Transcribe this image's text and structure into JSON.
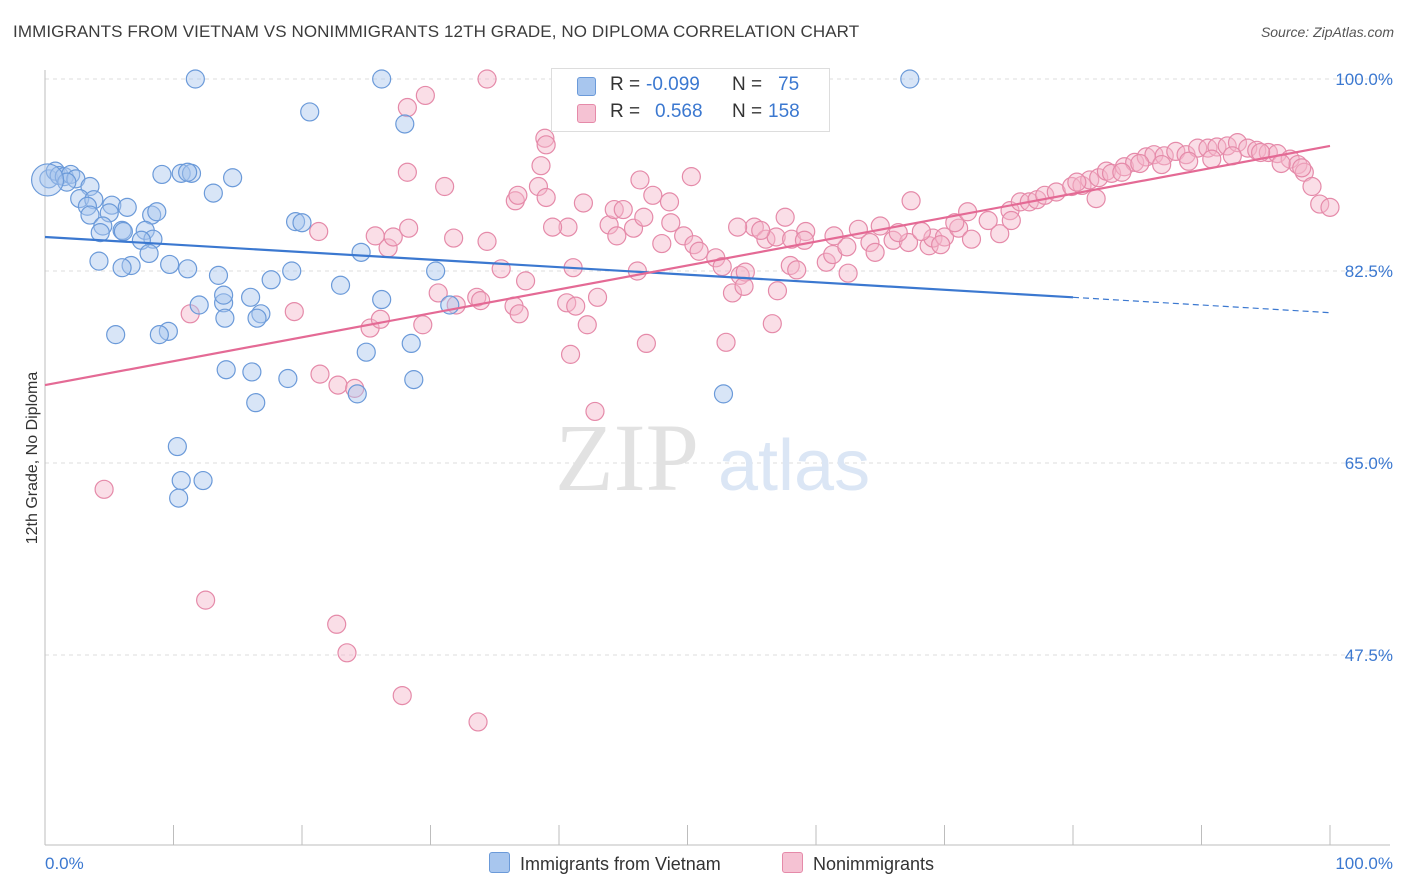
{
  "header": {
    "title": "IMMIGRANTS FROM VIETNAM VS NONIMMIGRANTS 12TH GRADE, NO DIPLOMA CORRELATION CHART",
    "source": "Source: ZipAtlas.com"
  },
  "watermark": {
    "zip": "ZIP",
    "atlas": "atlas"
  },
  "colors": {
    "blue": "#3b78d0",
    "blue_fill": "#a8c6ee",
    "pink": "#e46a95",
    "pink_fill": "#f5b6ca",
    "grid": "#dddddd",
    "tick_label": "#3b78d0"
  },
  "legend": {
    "rows": [
      {
        "r_label": "R =",
        "r_value": "-0.099",
        "n_label": "N =",
        "n_value": "75"
      },
      {
        "r_label": "R =",
        "r_value": "0.568",
        "n_label": "N =",
        "n_value": "158"
      }
    ]
  },
  "bottom_legend": {
    "items": [
      "Immigrants from Vietnam",
      "Nonimmigrants"
    ]
  },
  "chart_data": {
    "type": "scatter",
    "title": "IMMIGRANTS FROM VIETNAM VS NONIMMIGRANTS 12TH GRADE, NO DIPLOMA CORRELATION CHART",
    "xlabel": "",
    "ylabel": "12th Grade, No Diploma",
    "xlim": [
      0,
      100
    ],
    "ylim": [
      31,
      103
    ],
    "x_tick_labels": [
      "0.0%",
      "100.0%"
    ],
    "y_ticks": [
      47.5,
      65.0,
      82.5,
      100.0
    ],
    "y_tick_labels": [
      "47.5%",
      "65.0%",
      "82.5%",
      "100.0%"
    ],
    "grid": "horizontal dashed",
    "legend_position": "top-center",
    "series": [
      {
        "name": "Immigrants from Vietnam",
        "stats": {
          "R": -0.099,
          "N": 75
        },
        "trend": {
          "x0": 0,
          "y0": 85.6,
          "x1": 80,
          "y1": 80.1,
          "dashed_to_x": 100,
          "dashed_to_y": 78.7
        },
        "points": [
          [
            0.3,
            90.9
          ],
          [
            0.8,
            91.6
          ],
          [
            1.1,
            91.2
          ],
          [
            1.5,
            91.1
          ],
          [
            2.0,
            91.3
          ],
          [
            2.4,
            90.9
          ],
          [
            1.7,
            90.6
          ],
          [
            3.5,
            90.2
          ],
          [
            2.7,
            89.1
          ],
          [
            3.8,
            89.0
          ],
          [
            3.3,
            88.4
          ],
          [
            5.2,
            88.5
          ],
          [
            6.4,
            88.3
          ],
          [
            5.0,
            87.8
          ],
          [
            3.5,
            87.6
          ],
          [
            8.3,
            87.6
          ],
          [
            8.7,
            87.9
          ],
          [
            4.5,
            86.6
          ],
          [
            4.3,
            86.0
          ],
          [
            6.0,
            86.2
          ],
          [
            6.1,
            86.1
          ],
          [
            7.8,
            86.2
          ],
          [
            8.4,
            85.4
          ],
          [
            7.5,
            85.3
          ],
          [
            8.1,
            84.1
          ],
          [
            4.2,
            83.4
          ],
          [
            6.7,
            83.0
          ],
          [
            6.0,
            82.8
          ],
          [
            9.7,
            83.1
          ],
          [
            11.1,
            82.7
          ],
          [
            13.5,
            82.1
          ],
          [
            12.0,
            79.4
          ],
          [
            13.9,
            79.6
          ],
          [
            14.0,
            78.2
          ],
          [
            16.0,
            80.1
          ],
          [
            17.6,
            81.7
          ],
          [
            16.8,
            78.6
          ],
          [
            19.2,
            82.5
          ],
          [
            9.6,
            77.0
          ],
          [
            8.9,
            76.7
          ],
          [
            5.5,
            76.7
          ],
          [
            10.6,
            91.4
          ],
          [
            11.4,
            91.4
          ],
          [
            11.1,
            91.5
          ],
          [
            9.1,
            91.3
          ],
          [
            14.6,
            91.0
          ],
          [
            13.1,
            89.6
          ],
          [
            19.5,
            87.0
          ],
          [
            20.0,
            86.9
          ],
          [
            23.0,
            81.2
          ],
          [
            26.2,
            79.9
          ],
          [
            24.6,
            84.2
          ],
          [
            30.4,
            82.5
          ],
          [
            31.5,
            79.4
          ],
          [
            25.0,
            75.1
          ],
          [
            28.5,
            75.9
          ],
          [
            14.1,
            73.5
          ],
          [
            16.1,
            73.3
          ],
          [
            18.9,
            72.7
          ],
          [
            16.4,
            70.5
          ],
          [
            28.7,
            72.6
          ],
          [
            24.3,
            71.3
          ],
          [
            12.3,
            63.4
          ],
          [
            10.3,
            66.5
          ],
          [
            10.6,
            63.4
          ],
          [
            10.4,
            61.8
          ],
          [
            11.7,
            100.0
          ],
          [
            20.6,
            97.0
          ],
          [
            26.2,
            100.0
          ],
          [
            28.0,
            95.9
          ],
          [
            42.6,
            100.0
          ],
          [
            67.3,
            100.0
          ],
          [
            52.8,
            71.3
          ],
          [
            16.5,
            78.2
          ],
          [
            13.9,
            80.3
          ]
        ]
      },
      {
        "name": "Nonimmigrants",
        "stats": {
          "R": 0.568,
          "N": 158
        },
        "trend": {
          "x0": 0,
          "y0": 72.1,
          "x1": 100,
          "y1": 93.9
        },
        "points": [
          [
            4.6,
            62.6
          ],
          [
            12.5,
            52.5
          ],
          [
            22.7,
            50.3
          ],
          [
            23.5,
            47.7
          ],
          [
            33.7,
            41.4
          ],
          [
            27.8,
            43.8
          ],
          [
            11.3,
            78.6
          ],
          [
            19.4,
            78.8
          ],
          [
            21.3,
            86.1
          ],
          [
            21.4,
            73.1
          ],
          [
            22.8,
            72.1
          ],
          [
            24.1,
            71.8
          ],
          [
            25.3,
            77.3
          ],
          [
            26.1,
            78.1
          ],
          [
            25.7,
            85.7
          ],
          [
            26.7,
            84.6
          ],
          [
            27.1,
            85.6
          ],
          [
            28.2,
            91.5
          ],
          [
            28.3,
            86.4
          ],
          [
            29.4,
            77.6
          ],
          [
            30.6,
            80.5
          ],
          [
            31.8,
            85.5
          ],
          [
            33.6,
            80.1
          ],
          [
            33.9,
            79.8
          ],
          [
            34.4,
            85.2
          ],
          [
            35.5,
            82.7
          ],
          [
            36.5,
            79.3
          ],
          [
            37.4,
            81.6
          ],
          [
            36.9,
            78.6
          ],
          [
            38.4,
            90.2
          ],
          [
            38.9,
            94.6
          ],
          [
            31.1,
            90.2
          ],
          [
            28.2,
            97.4
          ],
          [
            29.6,
            98.5
          ],
          [
            34.4,
            100.0
          ],
          [
            36.6,
            88.9
          ],
          [
            36.8,
            89.4
          ],
          [
            39.0,
            89.2
          ],
          [
            38.6,
            92.1
          ],
          [
            39.0,
            94.0
          ],
          [
            40.7,
            86.5
          ],
          [
            41.1,
            82.8
          ],
          [
            40.6,
            79.6
          ],
          [
            41.3,
            79.3
          ],
          [
            40.9,
            74.9
          ],
          [
            42.2,
            77.6
          ],
          [
            43.0,
            80.1
          ],
          [
            42.8,
            69.7
          ],
          [
            43.9,
            86.7
          ],
          [
            44.3,
            88.1
          ],
          [
            45.0,
            88.1
          ],
          [
            46.1,
            82.5
          ],
          [
            45.8,
            86.4
          ],
          [
            46.6,
            87.4
          ],
          [
            46.8,
            75.9
          ],
          [
            46.3,
            90.8
          ],
          [
            47.3,
            89.4
          ],
          [
            48.6,
            88.8
          ],
          [
            48.7,
            86.9
          ],
          [
            49.7,
            85.7
          ],
          [
            50.5,
            84.9
          ],
          [
            50.9,
            84.3
          ],
          [
            50.3,
            91.1
          ],
          [
            52.2,
            83.7
          ],
          [
            52.7,
            82.9
          ],
          [
            53.0,
            76.0
          ],
          [
            53.5,
            80.5
          ],
          [
            54.1,
            82.1
          ],
          [
            54.5,
            82.4
          ],
          [
            54.4,
            81.1
          ],
          [
            55.2,
            86.5
          ],
          [
            56.1,
            85.4
          ],
          [
            56.9,
            85.6
          ],
          [
            58.1,
            85.4
          ],
          [
            59.2,
            86.1
          ],
          [
            58.0,
            83.0
          ],
          [
            58.5,
            82.6
          ],
          [
            57.0,
            80.7
          ],
          [
            56.6,
            77.7
          ],
          [
            55.7,
            86.2
          ],
          [
            59.1,
            85.3
          ],
          [
            60.8,
            83.3
          ],
          [
            62.5,
            82.3
          ],
          [
            61.3,
            84.0
          ],
          [
            62.4,
            84.7
          ],
          [
            64.2,
            85.1
          ],
          [
            64.6,
            84.2
          ],
          [
            65.0,
            86.6
          ],
          [
            66.0,
            85.3
          ],
          [
            67.2,
            85.1
          ],
          [
            68.8,
            84.8
          ],
          [
            69.1,
            85.5
          ],
          [
            70.0,
            85.6
          ],
          [
            71.1,
            86.4
          ],
          [
            72.1,
            85.4
          ],
          [
            73.4,
            87.1
          ],
          [
            74.3,
            85.9
          ],
          [
            75.1,
            88.0
          ],
          [
            75.2,
            87.1
          ],
          [
            75.9,
            88.8
          ],
          [
            76.6,
            88.8
          ],
          [
            77.2,
            89.0
          ],
          [
            77.8,
            89.4
          ],
          [
            78.7,
            89.7
          ],
          [
            79.9,
            90.2
          ],
          [
            80.7,
            90.3
          ],
          [
            81.3,
            90.8
          ],
          [
            82.0,
            91.0
          ],
          [
            82.6,
            91.6
          ],
          [
            83.0,
            91.4
          ],
          [
            84.0,
            92.0
          ],
          [
            84.8,
            92.4
          ],
          [
            85.7,
            92.9
          ],
          [
            86.3,
            93.1
          ],
          [
            87.1,
            93.0
          ],
          [
            88.0,
            93.4
          ],
          [
            88.8,
            93.1
          ],
          [
            89.7,
            93.7
          ],
          [
            90.5,
            93.7
          ],
          [
            91.2,
            93.8
          ],
          [
            92.0,
            93.9
          ],
          [
            92.8,
            94.2
          ],
          [
            93.6,
            93.7
          ],
          [
            94.3,
            93.5
          ],
          [
            95.2,
            93.3
          ],
          [
            95.9,
            93.2
          ],
          [
            96.9,
            92.7
          ],
          [
            97.5,
            92.2
          ],
          [
            98.0,
            91.5
          ],
          [
            98.6,
            90.2
          ],
          [
            99.2,
            88.6
          ],
          [
            100.0,
            88.3
          ],
          [
            68.2,
            86.1
          ],
          [
            69.7,
            84.9
          ],
          [
            63.3,
            86.3
          ],
          [
            67.4,
            88.9
          ],
          [
            70.8,
            86.9
          ],
          [
            66.4,
            86.0
          ],
          [
            71.8,
            87.9
          ],
          [
            80.3,
            90.6
          ],
          [
            81.8,
            89.1
          ],
          [
            83.8,
            91.5
          ],
          [
            85.2,
            92.3
          ],
          [
            86.9,
            92.2
          ],
          [
            89.0,
            92.5
          ],
          [
            90.8,
            92.7
          ],
          [
            92.4,
            93.0
          ],
          [
            94.6,
            93.3
          ],
          [
            96.2,
            92.3
          ],
          [
            97.8,
            91.9
          ],
          [
            61.4,
            85.7
          ],
          [
            57.6,
            87.4
          ],
          [
            53.9,
            86.5
          ],
          [
            48.0,
            85.0
          ],
          [
            44.5,
            85.7
          ],
          [
            41.9,
            88.7
          ],
          [
            39.5,
            86.5
          ],
          [
            32.0,
            79.4
          ]
        ]
      }
    ]
  }
}
